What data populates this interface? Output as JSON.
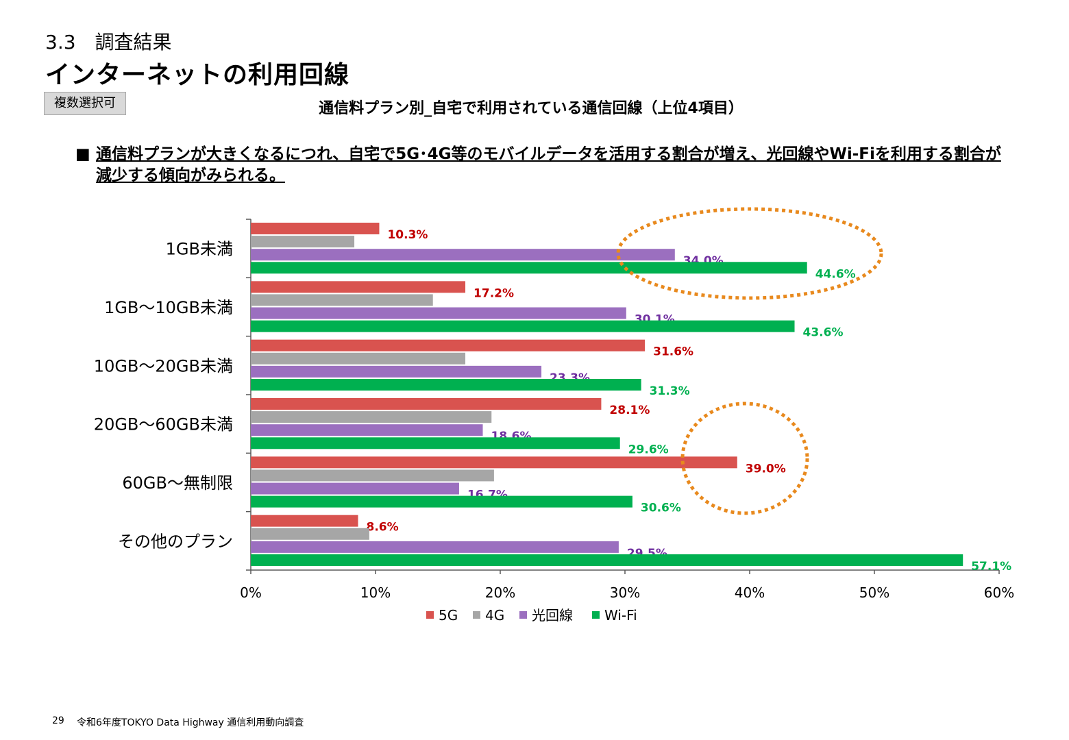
{
  "header": {
    "section": "3.3　調査結果",
    "title": "インターネットの利用回線",
    "badge": "複数選択可"
  },
  "summary": {
    "bullet": "■",
    "text": "通信料プランが大きくなるにつれ、自宅で5G･4G等のモバイルデータを活用する割合が増え、光回線やWi-Fiを利用する割合が減少する傾向がみられる。"
  },
  "chart_data": {
    "type": "bar",
    "orientation": "horizontal",
    "title": "通信料プラン別_自宅で利用されている通信回線（上位4項目）",
    "categories": [
      "1GB未満",
      "1GB～10GB未満",
      "10GB～20GB未満",
      "20GB～60GB未満",
      "60GB～無制限",
      "その他のプラン"
    ],
    "series": [
      {
        "name": "5G",
        "color": "#d9534f",
        "label_color": "#c00000",
        "labeled": true,
        "values": [
          10.3,
          17.2,
          31.6,
          28.1,
          39.0,
          8.6
        ]
      },
      {
        "name": "4G",
        "color": "#a6a6a6",
        "label_color": "#7f7f7f",
        "labeled": false,
        "values": [
          8.3,
          14.6,
          17.2,
          19.3,
          19.5,
          9.5
        ]
      },
      {
        "name": "光回線",
        "color": "#9b6fbf",
        "label_color": "#7030a0",
        "labeled": true,
        "values": [
          34.0,
          30.1,
          23.3,
          18.6,
          16.7,
          29.5
        ]
      },
      {
        "name": "Wi-Fi",
        "color": "#00b050",
        "label_color": "#00b050",
        "labeled": true,
        "values": [
          44.6,
          43.6,
          31.3,
          29.6,
          30.6,
          57.1
        ]
      }
    ],
    "xlim": [
      0,
      60
    ],
    "xticks": [
      "0%",
      "10%",
      "20%",
      "30%",
      "40%",
      "50%",
      "60%"
    ],
    "legend_position": "bottom",
    "grid": false,
    "highlights": [
      {
        "shape": "dotted-ellipse",
        "color": "#e8891d",
        "around": "1GB未満: 光回線, Wi-Fi"
      },
      {
        "shape": "dotted-ellipse",
        "color": "#e8891d",
        "around": "60GB～無制限: 5G"
      }
    ]
  },
  "footer": {
    "page": "29",
    "source": "令和6年度TOKYO Data Highway 通信利用動向調査"
  }
}
